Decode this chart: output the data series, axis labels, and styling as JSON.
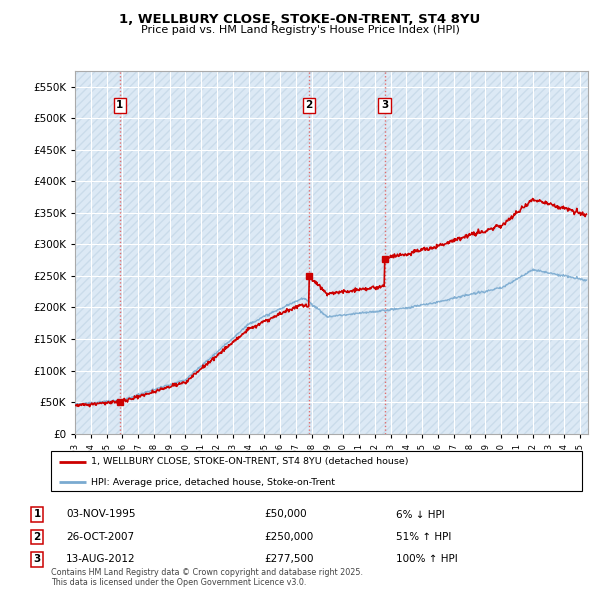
{
  "title": "1, WELLBURY CLOSE, STOKE-ON-TRENT, ST4 8YU",
  "subtitle": "Price paid vs. HM Land Registry's House Price Index (HPI)",
  "legend_line1": "1, WELLBURY CLOSE, STOKE-ON-TRENT, ST4 8YU (detached house)",
  "legend_line2": "HPI: Average price, detached house, Stoke-on-Trent",
  "transactions": [
    {
      "num": 1,
      "date": "03-NOV-1995",
      "price": 50000,
      "pct": "6%",
      "dir": "↓",
      "year": 1995.84
    },
    {
      "num": 2,
      "date": "26-OCT-2007",
      "price": 250000,
      "pct": "51%",
      "dir": "↑",
      "year": 2007.82
    },
    {
      "num": 3,
      "date": "13-AUG-2012",
      "price": 277500,
      "pct": "100%",
      "dir": "↑",
      "year": 2012.62
    }
  ],
  "footnote": "Contains HM Land Registry data © Crown copyright and database right 2025.\nThis data is licensed under the Open Government Licence v3.0.",
  "property_color": "#cc0000",
  "hpi_color": "#7aaad0",
  "ylim": [
    0,
    575000
  ],
  "xlim_start": 1993.0,
  "xlim_end": 2025.5,
  "plot_bg_color": "#dce9f5",
  "hatch_color": "#c0c0c0",
  "grid_color": "#ffffff"
}
